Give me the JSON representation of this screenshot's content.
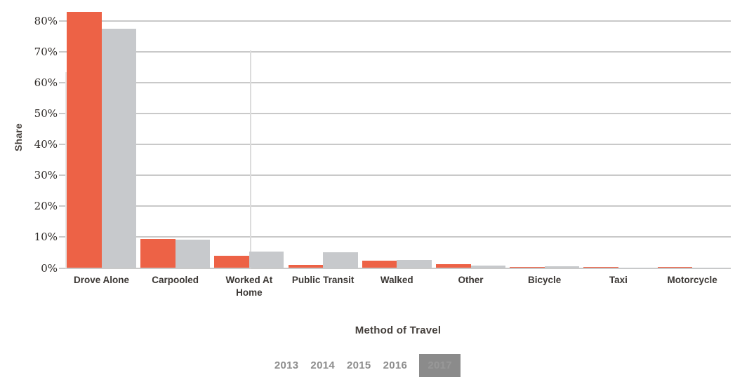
{
  "chart_data": {
    "type": "bar",
    "title": "",
    "xlabel": "Method of Travel",
    "ylabel": "Share",
    "categories": [
      "Drove Alone",
      "Carpooled",
      "Worked At Home",
      "Public Transit",
      "Walked",
      "Other",
      "Bicycle",
      "Taxi",
      "Motorcycle"
    ],
    "series": [
      {
        "name": "orange",
        "color": "#ED6246",
        "values": [
          82.8,
          9.3,
          4.0,
          1.1,
          2.3,
          1.3,
          0.4,
          0.4,
          0.4
        ]
      },
      {
        "name": "gray",
        "color": "#C7C9CC",
        "values": [
          77.3,
          9.1,
          5.4,
          5.0,
          2.6,
          0.8,
          0.5,
          0.15,
          0.1
        ]
      }
    ],
    "y_axis": {
      "tick_labels": [
        "0%",
        "10%",
        "20%",
        "30%",
        "40%",
        "50%",
        "60%",
        "70%",
        "80%"
      ],
      "tick_values": [
        0,
        10,
        20,
        30,
        40,
        50,
        60,
        70,
        80
      ],
      "min": 0,
      "max": 83,
      "unit": "%"
    },
    "grid": "horizontal",
    "legend_position": "bottom"
  },
  "year_selector": {
    "items": [
      {
        "label": "2013",
        "selected": false
      },
      {
        "label": "2014",
        "selected": false
      },
      {
        "label": "2015",
        "selected": false
      },
      {
        "label": "2016",
        "selected": false
      },
      {
        "label": "2017",
        "selected": true
      }
    ]
  },
  "colors": {
    "bar_orange": "#ED6246",
    "bar_gray": "#C7C9CC",
    "gridline": "#C9C9C9",
    "tick_text": "#2D2926",
    "category_text": "#3B3734",
    "axis_title_text": "#45403C",
    "year_text": "#8D8D8D",
    "year_selected_bg": "#8B8B8B",
    "year_selected_text": "#989898",
    "background": "#FFFFFF"
  }
}
